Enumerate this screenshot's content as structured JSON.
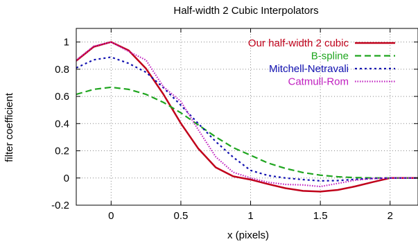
{
  "chart_data": {
    "type": "line",
    "title": "Half-width 2 Cubic Interpolators",
    "xlabel": "x (pixels)",
    "ylabel": "filter coefficient",
    "xlim": [
      -0.25,
      2.2
    ],
    "ylim": [
      -0.2,
      1.1
    ],
    "x_ticks": [
      0,
      0.5,
      1,
      1.5,
      2
    ],
    "x_tick_labels": [
      "0",
      "0.5",
      "1",
      "1.5",
      "2"
    ],
    "y_ticks": [
      -0.2,
      0,
      0.2,
      0.4,
      0.6,
      0.8,
      1
    ],
    "y_tick_labels": [
      "-0.2",
      "0",
      "0.2",
      "0.4",
      "0.6",
      "0.8",
      "1"
    ],
    "grid": true,
    "legend_position": "top-right",
    "x": [
      -0.25,
      -0.125,
      0,
      0.125,
      0.25,
      0.375,
      0.5,
      0.625,
      0.75,
      0.875,
      1,
      1.125,
      1.25,
      1.375,
      1.5,
      1.625,
      1.75,
      1.875,
      2,
      2.2
    ],
    "series": [
      {
        "name": "Our half-width 2 cubic",
        "color": "#c0001a",
        "dash": "solid",
        "values": [
          0.862,
          0.965,
          1.0,
          0.939,
          0.805,
          0.615,
          0.402,
          0.216,
          0.078,
          0.012,
          -0.012,
          -0.045,
          -0.075,
          -0.095,
          -0.1,
          -0.088,
          -0.062,
          -0.03,
          0.0,
          0.0
        ]
      },
      {
        "name": "B-spline",
        "color": "#1fa51f",
        "dash": "dashed",
        "values": [
          0.615,
          0.652,
          0.667,
          0.652,
          0.615,
          0.556,
          0.479,
          0.39,
          0.302,
          0.223,
          0.167,
          0.11,
          0.07,
          0.04,
          0.021,
          0.009,
          0.003,
          0.0005,
          0.0,
          0.0
        ]
      },
      {
        "name": "Mitchell-Netravali",
        "color": "#1010b0",
        "dash": "dotted",
        "values": [
          0.81,
          0.869,
          0.889,
          0.843,
          0.778,
          0.664,
          0.535,
          0.4,
          0.268,
          0.153,
          0.056,
          0.018,
          0.0,
          -0.012,
          -0.021,
          -0.019,
          -0.01,
          -0.003,
          0.0,
          0.0
        ]
      },
      {
        "name": "Catmull-Rom",
        "color": "#c020c0",
        "dash": "dotted-fine",
        "values": [
          0.867,
          0.969,
          1.0,
          0.931,
          0.867,
          0.67,
          0.563,
          0.354,
          0.156,
          0.042,
          0.0,
          -0.032,
          -0.047,
          -0.051,
          -0.063,
          -0.04,
          -0.016,
          -0.004,
          0.0,
          0.0
        ]
      }
    ]
  }
}
